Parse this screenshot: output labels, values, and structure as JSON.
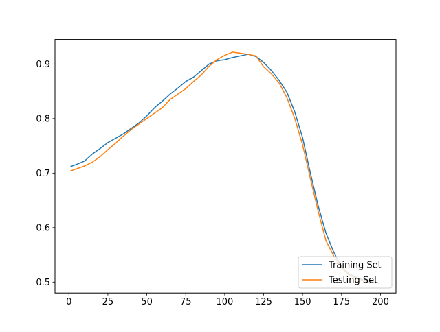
{
  "chart_data": {
    "type": "line",
    "title": "",
    "xlabel": "",
    "ylabel": "",
    "xlim": [
      -8.95,
      209.95
    ],
    "ylim": [
      0.48,
      0.945
    ],
    "xticks": [
      0,
      25,
      50,
      75,
      100,
      125,
      150,
      175,
      200
    ],
    "yticks": [
      0.5,
      0.6,
      0.7,
      0.8,
      0.9
    ],
    "ytick_labels": [
      "0.5",
      "0.6",
      "0.7",
      "0.8",
      "0.9"
    ],
    "grid": false,
    "legend_position": "lower right",
    "series": [
      {
        "name": "Training Set",
        "color": "#1f77b4",
        "x": [
          1,
          5,
          10,
          15,
          20,
          25,
          30,
          35,
          40,
          45,
          50,
          55,
          60,
          65,
          70,
          75,
          80,
          85,
          90,
          95,
          100,
          105,
          110,
          115,
          120,
          125,
          130,
          135,
          140,
          145,
          150,
          155,
          160,
          165,
          170,
          175,
          180,
          185,
          190,
          195,
          199
        ],
        "y": [
          0.712,
          0.716,
          0.722,
          0.735,
          0.745,
          0.756,
          0.764,
          0.772,
          0.782,
          0.792,
          0.805,
          0.82,
          0.832,
          0.845,
          0.856,
          0.868,
          0.876,
          0.888,
          0.9,
          0.906,
          0.908,
          0.912,
          0.915,
          0.918,
          0.914,
          0.903,
          0.888,
          0.87,
          0.848,
          0.812,
          0.765,
          0.7,
          0.64,
          0.59,
          0.555,
          0.528,
          0.515,
          0.508,
          0.503,
          0.5,
          0.499
        ]
      },
      {
        "name": "Testing Set",
        "color": "#ff7f0e",
        "x": [
          1,
          5,
          10,
          15,
          20,
          25,
          30,
          35,
          40,
          45,
          50,
          55,
          60,
          65,
          70,
          75,
          80,
          85,
          90,
          95,
          100,
          105,
          110,
          115,
          120,
          125,
          130,
          135,
          140,
          145,
          150,
          155,
          160,
          165,
          170,
          175,
          180,
          185,
          190,
          195,
          199
        ],
        "y": [
          0.704,
          0.708,
          0.713,
          0.72,
          0.73,
          0.743,
          0.755,
          0.768,
          0.78,
          0.79,
          0.8,
          0.81,
          0.82,
          0.835,
          0.845,
          0.855,
          0.868,
          0.88,
          0.896,
          0.908,
          0.916,
          0.922,
          0.92,
          0.918,
          0.915,
          0.895,
          0.882,
          0.865,
          0.838,
          0.8,
          0.752,
          0.69,
          0.63,
          0.576,
          0.548,
          0.526,
          0.513,
          0.506,
          0.502,
          0.499,
          0.498
        ]
      }
    ]
  }
}
